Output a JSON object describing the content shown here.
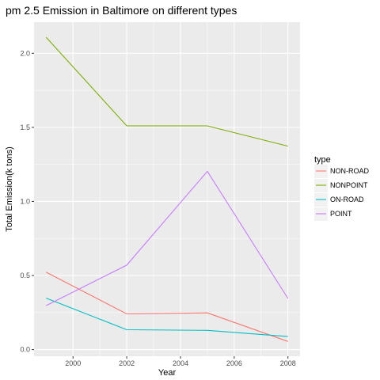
{
  "chart_data": {
    "type": "line",
    "title": "pm 2.5 Emission in Baltimore on different types",
    "xlabel": "Year",
    "ylabel": "Total Emission(k tons)",
    "x": [
      1999,
      2002,
      2005,
      2008
    ],
    "xlim": [
      1998.55,
      2008.45
    ],
    "ylim": [
      -0.045,
      2.21
    ],
    "xticks": [
      2000,
      2002,
      2004,
      2006,
      2008
    ],
    "yticks": [
      0.0,
      0.5,
      1.0,
      1.5,
      2.0
    ],
    "ytick_labels": [
      "0.0",
      "0.5",
      "1.0",
      "1.5",
      "2.0"
    ],
    "grid": true,
    "legend": {
      "title": "type",
      "position": "right"
    },
    "series": [
      {
        "name": "NON-ROAD",
        "color": "#F8766D",
        "values": [
          0.522,
          0.241,
          0.248,
          0.055
        ]
      },
      {
        "name": "NONPOINT",
        "color": "#7CAE00",
        "values": [
          2.108,
          1.51,
          1.51,
          1.373
        ]
      },
      {
        "name": "ON-ROAD",
        "color": "#00BFC4",
        "values": [
          0.347,
          0.134,
          0.13,
          0.088
        ]
      },
      {
        "name": "POINT",
        "color": "#C77CFF",
        "values": [
          0.297,
          0.57,
          1.203,
          0.345
        ]
      }
    ]
  }
}
